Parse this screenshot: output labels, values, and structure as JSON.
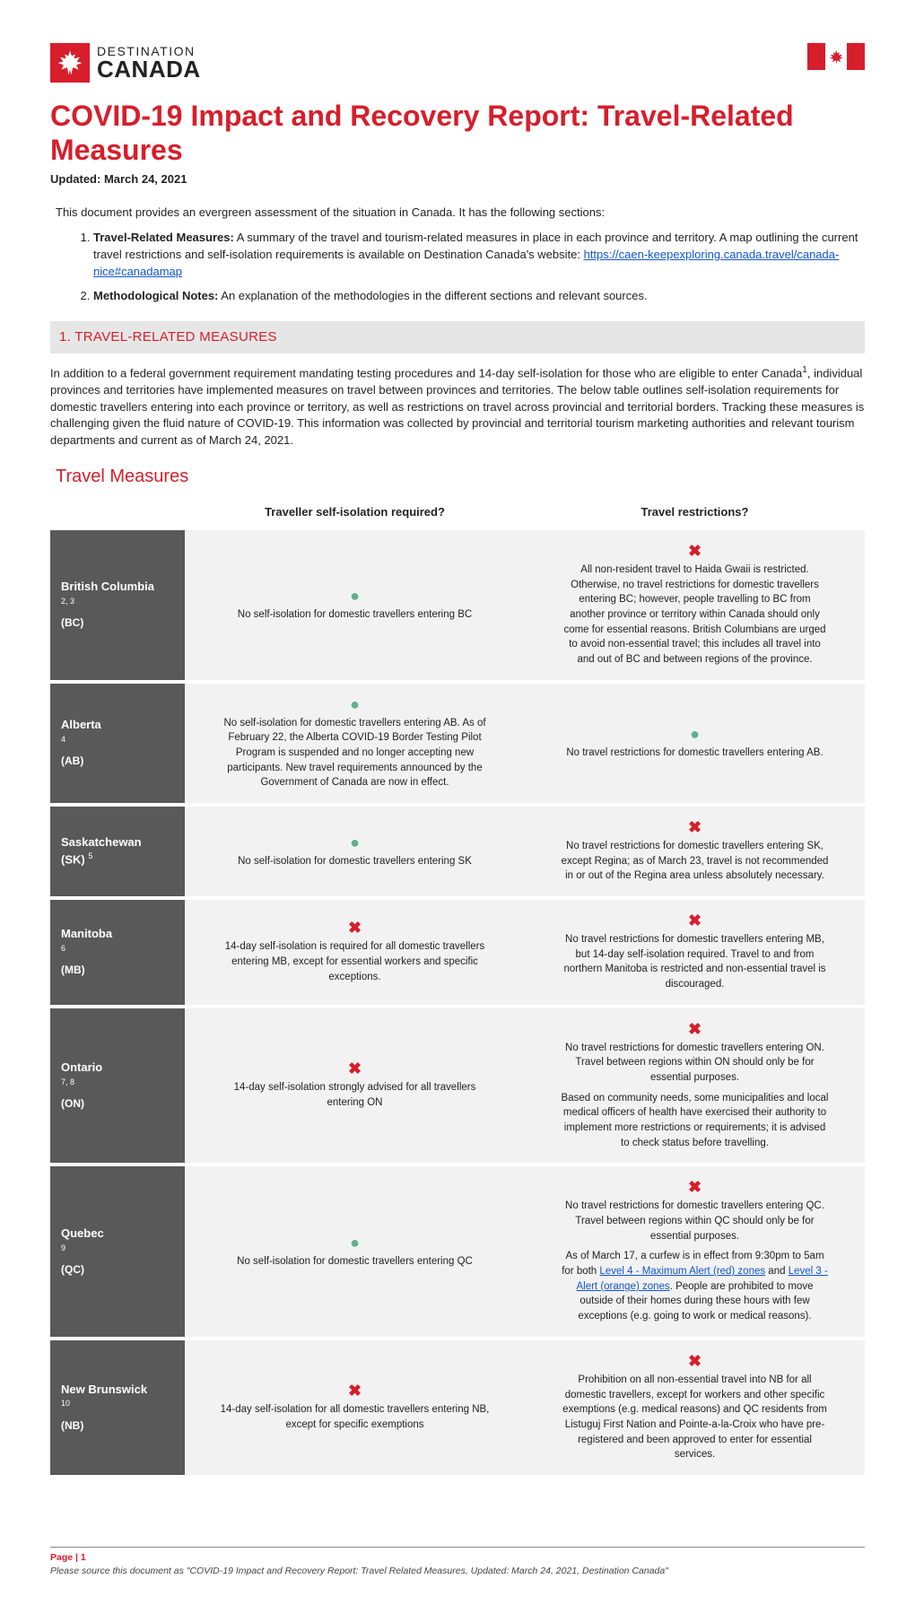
{
  "logo": {
    "top": "DESTINATION",
    "bottom": "CANADA"
  },
  "title": "COVID-19 Impact and Recovery Report: Travel-Related Measures",
  "updated": "Updated: March 24, 2021",
  "intro": "This document provides an evergreen assessment of the situation in Canada. It has the following sections:",
  "toc": [
    {
      "label": "Travel-Related Measures:",
      "text": "A summary of the travel and tourism-related measures in place in each province and territory. A map outlining the current travel restrictions and self-isolation requirements is available on Destination Canada's website: ",
      "link_text": "https://caen-keepexploring.canada.travel/canada-nice#canadamap"
    },
    {
      "label": "Methodological Notes:",
      "text": "An explanation of the methodologies in the different sections and relevant sources."
    }
  ],
  "section1": {
    "heading": "1. TRAVEL-RELATED MEASURES",
    "para_a": "In addition to a federal government requirement mandating testing procedures and 14-day self-isolation for those who are eligible to enter Canada",
    "ref": "1",
    "para_b": ", individual provinces and territories have implemented measures on travel between provinces and territories. The below table outlines self-isolation requirements for domestic travellers entering into each province or territory, as well as restrictions on travel across provincial and territorial borders. Tracking these measures is challenging given the fluid nature of COVID-19. This information was collected by provincial and territorial tourism marketing authorities and relevant tourism departments and current as of March 24, 2021."
  },
  "subheading": "Travel Measures",
  "table": {
    "headers": {
      "col1": "Traveller self-isolation required?",
      "col2": "Travel restrictions?"
    },
    "rows": [
      {
        "name": "British Columbia",
        "refs": "2, 3",
        "abbr": "(BC)",
        "iso_status": "ok",
        "iso_text": "No self-isolation for domestic travellers entering BC",
        "res_status": "no",
        "res_text": "All non-resident travel to Haida Gwaii is restricted. Otherwise, no travel restrictions for domestic travellers entering BC; however, people travelling to BC from another province or territory within Canada should only come for essential reasons. British Columbians are urged to avoid non-essential travel; this includes all travel into and out of BC and between regions of the province."
      },
      {
        "name": "Alberta",
        "refs": "4",
        "abbr": "(AB)",
        "iso_status": "ok",
        "iso_text": "No self-isolation for domestic travellers entering AB. As of February 22, the Alberta COVID-19 Border Testing Pilot Program is suspended and no longer accepting new participants. New travel requirements announced by the Government of Canada are now in effect.",
        "res_status": "ok",
        "res_text": "No travel restrictions for domestic travellers entering AB."
      },
      {
        "name": "Saskatchewan",
        "refs": "5",
        "abbr": "(SK)",
        "refs_inline": true,
        "iso_status": "ok",
        "iso_text": "No self-isolation for domestic travellers entering SK",
        "res_status": "no",
        "res_text": "No travel restrictions for domestic travellers entering SK, except Regina; as of March 23, travel is not recommended in or out of the Regina area unless absolutely necessary."
      },
      {
        "name": "Manitoba",
        "refs": "6",
        "abbr": "(MB)",
        "iso_status": "no",
        "iso_text": "14-day self-isolation is required for all domestic travellers entering MB, except for essential workers and specific exceptions.",
        "res_status": "no",
        "res_text": "No travel restrictions for domestic travellers entering MB, but 14-day self-isolation required. Travel to and from northern Manitoba is restricted and non-essential travel is discouraged."
      },
      {
        "name": "Ontario",
        "refs": "7, 8",
        "abbr": "(ON)",
        "iso_status": "no",
        "iso_text": "14-day self-isolation strongly advised for all travellers entering ON",
        "res_status": "no",
        "res_text": "No travel restrictions for domestic travellers entering ON. Travel between regions within ON should only be for essential purposes.",
        "res_text2": "Based on community needs, some municipalities and local medical officers of health have exercised their authority to implement more restrictions or requirements; it is advised to check status before travelling."
      },
      {
        "name": "Quebec",
        "refs": "9",
        "abbr": "(QC)",
        "iso_status": "ok",
        "iso_text": "No self-isolation for domestic travellers entering QC",
        "res_status": "no",
        "res_text": "No travel restrictions for domestic travellers entering QC. Travel between regions within QC should only be for essential purposes.",
        "res_text2_pre": "As of March 17, a curfew is in effect from 9:30pm to 5am for both ",
        "res_link1": "Level 4 - Maximum Alert (red) zones",
        "res_text2_mid": " and ",
        "res_link2": "Level 3 - Alert (orange) zones",
        "res_text2_post": ". People are prohibited to move outside of their homes during these hours with few exceptions (e.g. going to work or medical reasons)."
      },
      {
        "name": "New Brunswick",
        "refs": "10",
        "abbr": "(NB)",
        "iso_status": "no",
        "iso_text": "14-day self-isolation for all domestic travellers entering NB, except for specific exemptions",
        "res_status": "no",
        "res_text": "Prohibition on all non-essential travel into NB for all domestic travellers, except for workers and other specific exemptions (e.g. medical reasons) and QC residents from Listuguj First Nation and Pointe-a-la-Croix who have pre-registered and been approved to enter for essential services."
      }
    ]
  },
  "footer": {
    "page": "Page | 1",
    "cite": "Please source this document as \"COVID-19 Impact and Recovery Report: Travel Related Measures, Updated: March 24, 2021, Destination Canada\""
  },
  "colors": {
    "brand_red": "#d71e2b",
    "ok_green": "#5fb08f",
    "row_bg": "#f2f2f2",
    "prov_bg": "#595959",
    "link_blue": "#1155cc"
  }
}
